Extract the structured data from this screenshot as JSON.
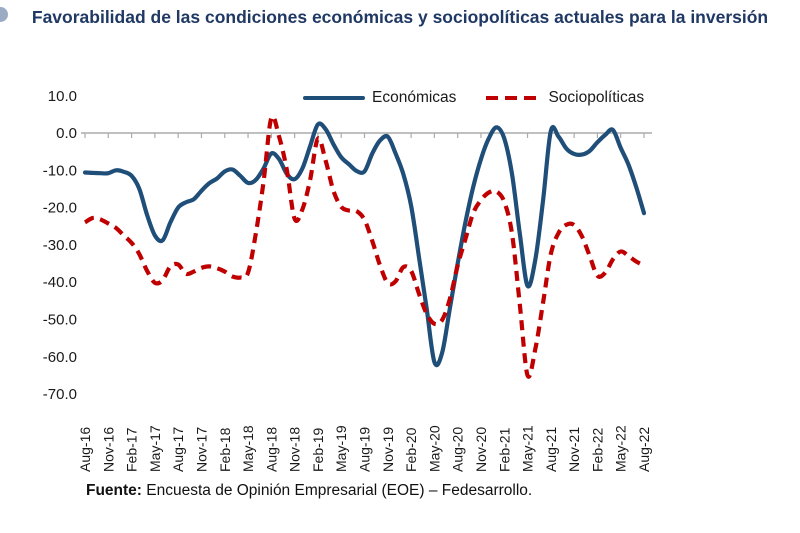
{
  "page": {
    "title": "Favorabilidad de las condiciones económicas y sociopolíticas actuales para la inversión"
  },
  "footer": {
    "label": "Fuente:",
    "text": " Encuesta de Opinión Empresarial (EOE) – Fedesarrollo."
  },
  "colors": {
    "economicas": "#1F4E79",
    "sociopoliticas": "#C00000",
    "title": "#1F3864",
    "axis": "#ABABAB",
    "tick_text": "#1A1A1A"
  },
  "chart_data": {
    "type": "line",
    "title": "Favorabilidad de las condiciones económicas y sociopolíticas actuales para la inversión",
    "xlabel": "",
    "ylabel": "",
    "ylim": [
      -70,
      10
    ],
    "grid": "off",
    "legend_position": "top",
    "x_interval": "monthly",
    "x_start": "Aug-16",
    "x_end": "Aug-22",
    "x_tick_labels": [
      "Aug-16",
      "Nov-16",
      "Feb-17",
      "May-17",
      "Aug-17",
      "Nov-17",
      "Feb-18",
      "May-18",
      "Aug-18",
      "Nov-18",
      "Feb-19",
      "May-19",
      "Aug-19",
      "Nov-19",
      "Feb-20",
      "May-20",
      "Aug-20",
      "Nov-20",
      "Feb-21",
      "May-21",
      "Aug-21",
      "Nov-21",
      "Feb-22",
      "May-22",
      "Aug-22"
    ],
    "ytick_labels": [
      "10.0",
      "0.0",
      "-10.0",
      "-20.0",
      "-30.0",
      "-40.0",
      "-50.0",
      "-60.0",
      "-70.0"
    ],
    "ytick_values": [
      10,
      0,
      -10,
      -20,
      -30,
      -40,
      -50,
      -60,
      -70
    ],
    "legend": [
      {
        "name": "Económicas",
        "color": "#1F4E79",
        "style": "solid"
      },
      {
        "name": "Sociopolíticas",
        "color": "#C00000",
        "style": "dashed"
      }
    ],
    "series": [
      {
        "name": "Económicas",
        "values": [
          -10.6,
          -10.7,
          -10.8,
          -10.8,
          -10.0,
          -10.4,
          -11.5,
          -15,
          -22,
          -27.5,
          -28.8,
          -24,
          -20,
          -18.6,
          -17.8,
          -15.5,
          -13.5,
          -12.2,
          -10.3,
          -9.8,
          -11.5,
          -13.4,
          -12.6,
          -9.5,
          -5.5,
          -7,
          -11,
          -12.4,
          -9.5,
          -3.5,
          2.3,
          1,
          -3,
          -6.5,
          -8.4,
          -10.2,
          -10.3,
          -5.5,
          -2,
          -1,
          -5.5,
          -11,
          -19.5,
          -33,
          -47,
          -61.5,
          -59,
          -47,
          -35,
          -24,
          -14.5,
          -7,
          -1.5,
          1.5,
          -1.5,
          -11,
          -27,
          -41,
          -34,
          -18,
          0.5,
          -1,
          -4.2,
          -5.6,
          -5.8,
          -4.8,
          -2.5,
          -0.5,
          0.8,
          -4,
          -8.5,
          -14.5,
          -21.5
        ]
      },
      {
        "name": "Sociopolíticas",
        "values": [
          -24,
          -22.8,
          -23.2,
          -24.3,
          -25.5,
          -27.5,
          -29.5,
          -32.5,
          -37,
          -40.2,
          -39.5,
          -35.8,
          -35.3,
          -37.8,
          -37.2,
          -36.2,
          -35.8,
          -36.3,
          -37.2,
          -38.5,
          -38.8,
          -37.5,
          -27,
          -13,
          4,
          -1,
          -10,
          -23,
          -20.5,
          -12.5,
          -1.5,
          -7.5,
          -15.5,
          -19.8,
          -20.8,
          -21,
          -23.3,
          -29,
          -35.5,
          -40.3,
          -39.8,
          -36,
          -37,
          -43,
          -48.5,
          -51.2,
          -50.2,
          -44.5,
          -35.5,
          -28.5,
          -21.5,
          -18,
          -16,
          -15.7,
          -18.5,
          -27,
          -46,
          -65,
          -58,
          -45.5,
          -32.5,
          -26.8,
          -24.6,
          -24.7,
          -27.7,
          -33,
          -38.3,
          -37.5,
          -33.9,
          -31.8,
          -33,
          -34.5,
          -35.5
        ]
      }
    ]
  }
}
